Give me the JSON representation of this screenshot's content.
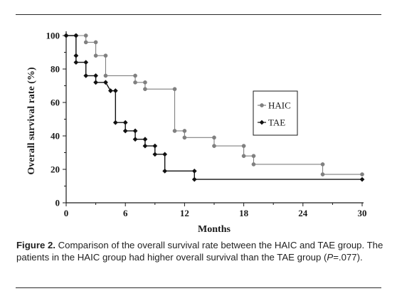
{
  "chart_data": {
    "type": "line",
    "step": true,
    "xlabel": "Months",
    "ylabel": "Overall survival rate (%)",
    "xlim": [
      0,
      30
    ],
    "ylim": [
      0,
      100
    ],
    "xticks": [
      "0",
      "6",
      "12",
      "18",
      "24",
      "30"
    ],
    "yticks": [
      "0",
      "20",
      "40",
      "60",
      "80",
      "100"
    ],
    "grid": false,
    "legend_position": "right",
    "series": [
      {
        "name": "HAIC",
        "marker": "circle",
        "color": "#808080",
        "points": [
          [
            0,
            100
          ],
          [
            1,
            100
          ],
          [
            2,
            100
          ],
          [
            2,
            96
          ],
          [
            3,
            96
          ],
          [
            3,
            88
          ],
          [
            4,
            88
          ],
          [
            4,
            76
          ],
          [
            7,
            76
          ],
          [
            7,
            72
          ],
          [
            8,
            72
          ],
          [
            8,
            68
          ],
          [
            11,
            68
          ],
          [
            11,
            43
          ],
          [
            12,
            43
          ],
          [
            12,
            39
          ],
          [
            15,
            39
          ],
          [
            15,
            34
          ],
          [
            18,
            34
          ],
          [
            18,
            28
          ],
          [
            19,
            28
          ],
          [
            19,
            23
          ],
          [
            26,
            23
          ],
          [
            26,
            17
          ],
          [
            30,
            17
          ]
        ]
      },
      {
        "name": "TAE",
        "marker": "diamond",
        "color": "#111111",
        "points": [
          [
            0,
            100
          ],
          [
            1,
            100
          ],
          [
            1,
            88
          ],
          [
            1,
            84
          ],
          [
            2,
            84
          ],
          [
            2,
            76
          ],
          [
            3,
            76
          ],
          [
            3,
            72
          ],
          [
            4,
            72
          ],
          [
            4.5,
            67
          ],
          [
            5,
            67
          ],
          [
            5,
            48
          ],
          [
            6,
            48
          ],
          [
            6,
            43
          ],
          [
            7,
            43
          ],
          [
            7,
            38
          ],
          [
            8,
            38
          ],
          [
            8,
            34
          ],
          [
            9,
            34
          ],
          [
            9,
            29
          ],
          [
            10,
            29
          ],
          [
            10,
            19
          ],
          [
            13,
            19
          ],
          [
            13,
            14
          ],
          [
            30,
            14
          ]
        ]
      }
    ]
  },
  "caption": {
    "label": "Figure 2.",
    "text_before_p": " Comparison of the overall survival rate between the HAIC and TAE group. The patients in the HAIC group had higher overall survival than the TAE group (",
    "p_symbol": "P",
    "text_after_p": "=.077)."
  }
}
